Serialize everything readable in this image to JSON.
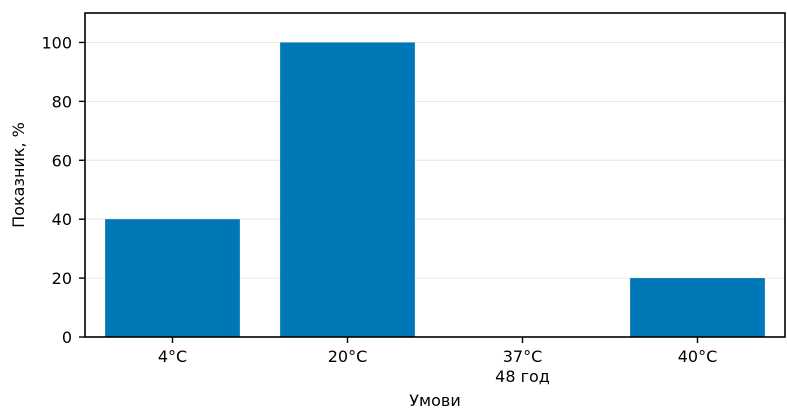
{
  "chart_data": {
    "type": "bar",
    "categories": [
      [
        "4°C"
      ],
      [
        "20°C"
      ],
      [
        "37°C",
        "48 год"
      ],
      [
        "40°C"
      ]
    ],
    "values": [
      40,
      100,
      0,
      20
    ],
    "xlabel": "Умови",
    "ylabel": "Показник, %",
    "ylim": [
      0,
      110
    ],
    "yticks": [
      0,
      20,
      40,
      60,
      80,
      100
    ],
    "grid": "horizontal",
    "bar_color": "#0077b6",
    "grid_color": "#e6e6e6"
  }
}
